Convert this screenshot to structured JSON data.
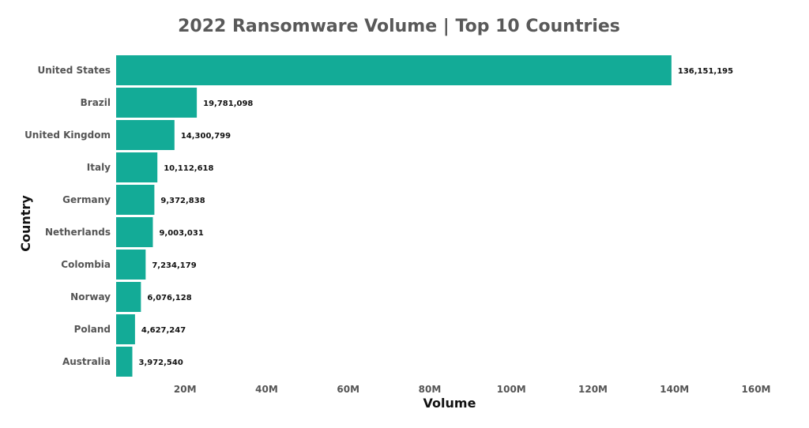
{
  "chart_data": {
    "type": "bar",
    "orientation": "horizontal",
    "title": "2022 Ransomware Volume | Top 10 Countries",
    "xlabel": "Volume",
    "ylabel": "Country",
    "categories": [
      "United States",
      "Brazil",
      "United Kingdom",
      "Italy",
      "Germany",
      "Netherlands",
      "Colombia",
      "Norway",
      "Poland",
      "Australia"
    ],
    "values": [
      136151195,
      19781098,
      14300799,
      10112618,
      9372838,
      9003031,
      7234179,
      6076128,
      4627247,
      3972540
    ],
    "value_labels": [
      "136,151,195",
      "19,781,098",
      "14,300,799",
      "10,112,618",
      "9,372,838",
      "9,003,031",
      "7,234,179",
      "6,076,128",
      "4,627,247",
      "3,972,540"
    ],
    "xticks": [
      20000000,
      40000000,
      60000000,
      80000000,
      100000000,
      120000000,
      140000000,
      160000000
    ],
    "xtick_labels": [
      "20M",
      "40M",
      "60M",
      "80M",
      "100M",
      "120M",
      "140M",
      "160M"
    ],
    "xlim": [
      0,
      160000000
    ],
    "grid": false,
    "legend": "none",
    "bar_color": "#13ab97"
  }
}
